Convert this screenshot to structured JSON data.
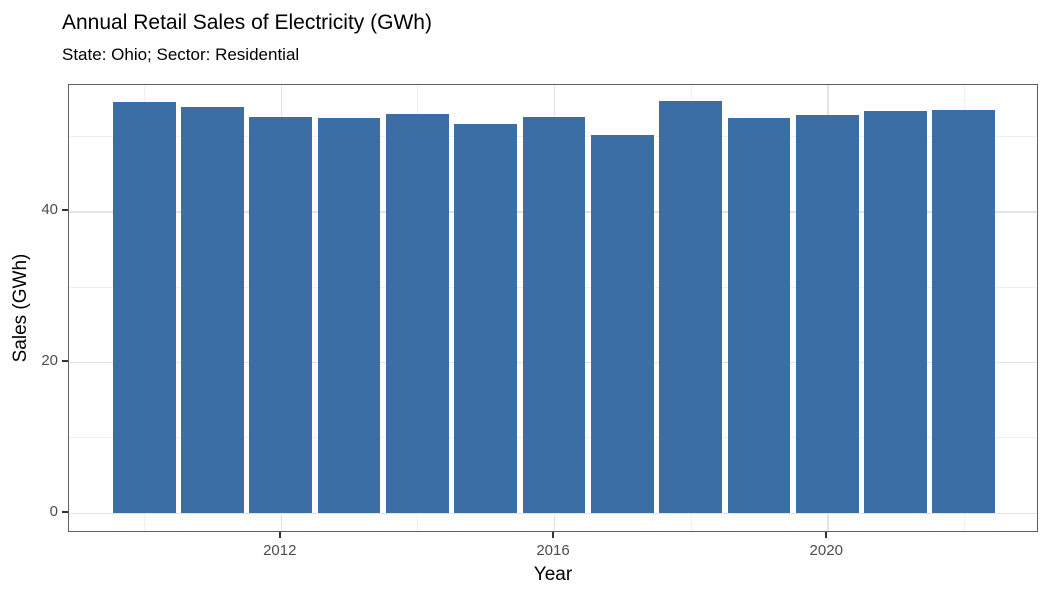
{
  "chart_data": {
    "type": "bar",
    "title": "Annual Retail Sales of Electricity (GWh)",
    "subtitle": "State: Ohio; Sector: Residential",
    "xlabel": "Year",
    "ylabel": "Sales (GWh)",
    "x": [
      2010,
      2011,
      2012,
      2013,
      2014,
      2015,
      2016,
      2017,
      2018,
      2019,
      2020,
      2021,
      2022
    ],
    "values": [
      54.6,
      53.9,
      52.5,
      52.4,
      53.0,
      51.6,
      52.6,
      50.1,
      54.7,
      52.4,
      52.8,
      53.4,
      53.5
    ],
    "xlim": [
      2008.9,
      2023.1
    ],
    "ylim": [
      -2.7,
      56.8
    ],
    "x_ticks": [
      2012,
      2016,
      2020
    ],
    "y_ticks": [
      0,
      20,
      40
    ],
    "x_gridlines_minor": [
      2010,
      2014,
      2018,
      2022
    ],
    "y_gridlines_minor": [
      10,
      30,
      50
    ],
    "bar_rel_width": 0.92,
    "grid": true,
    "legend_position": "none",
    "bar_color": "#3A6EA5",
    "background_color": "#FFFFFF",
    "panel_border_color": "#5F5F5F",
    "gridline_major_color": "#E3E3E3",
    "gridline_minor_color": "#EFEFEF",
    "axis_text_color": "#4D4D4D",
    "tick_mark_color": "#333333"
  }
}
